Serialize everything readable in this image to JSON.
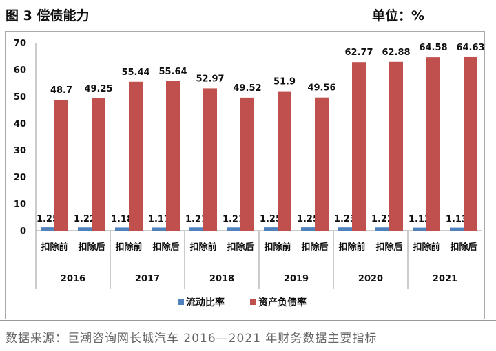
{
  "header": {
    "title": "图 3  偿债能力",
    "unit": "单位：%"
  },
  "source": "数据来源：巨潮咨询网长城汽车 2016—2021 年财务数据主要指标",
  "chart_data": {
    "type": "bar",
    "groups": [
      "2016",
      "2017",
      "2018",
      "2019",
      "2020",
      "2021"
    ],
    "categories": [
      "扣除前",
      "扣除后",
      "扣除前",
      "扣除后",
      "扣除前",
      "扣除后",
      "扣除前",
      "扣除后",
      "扣除前",
      "扣除后",
      "扣除前",
      "扣除后"
    ],
    "series": [
      {
        "name": "流动比率",
        "color": "#4F81BD",
        "values": [
          1.25,
          1.22,
          1.18,
          1.17,
          1.21,
          1.21,
          1.25,
          1.25,
          1.23,
          1.22,
          1.13,
          1.13
        ]
      },
      {
        "name": "资产负债率",
        "color": "#C0504D",
        "values": [
          48.7,
          49.25,
          55.44,
          55.64,
          52.97,
          49.52,
          51.9,
          49.56,
          62.77,
          62.88,
          64.58,
          64.63
        ]
      }
    ],
    "ylim": [
      0,
      70
    ],
    "yticks": [
      0,
      10,
      20,
      30,
      40,
      50,
      60,
      70
    ],
    "grid": false,
    "legend": "bottom",
    "data_labels": true
  }
}
